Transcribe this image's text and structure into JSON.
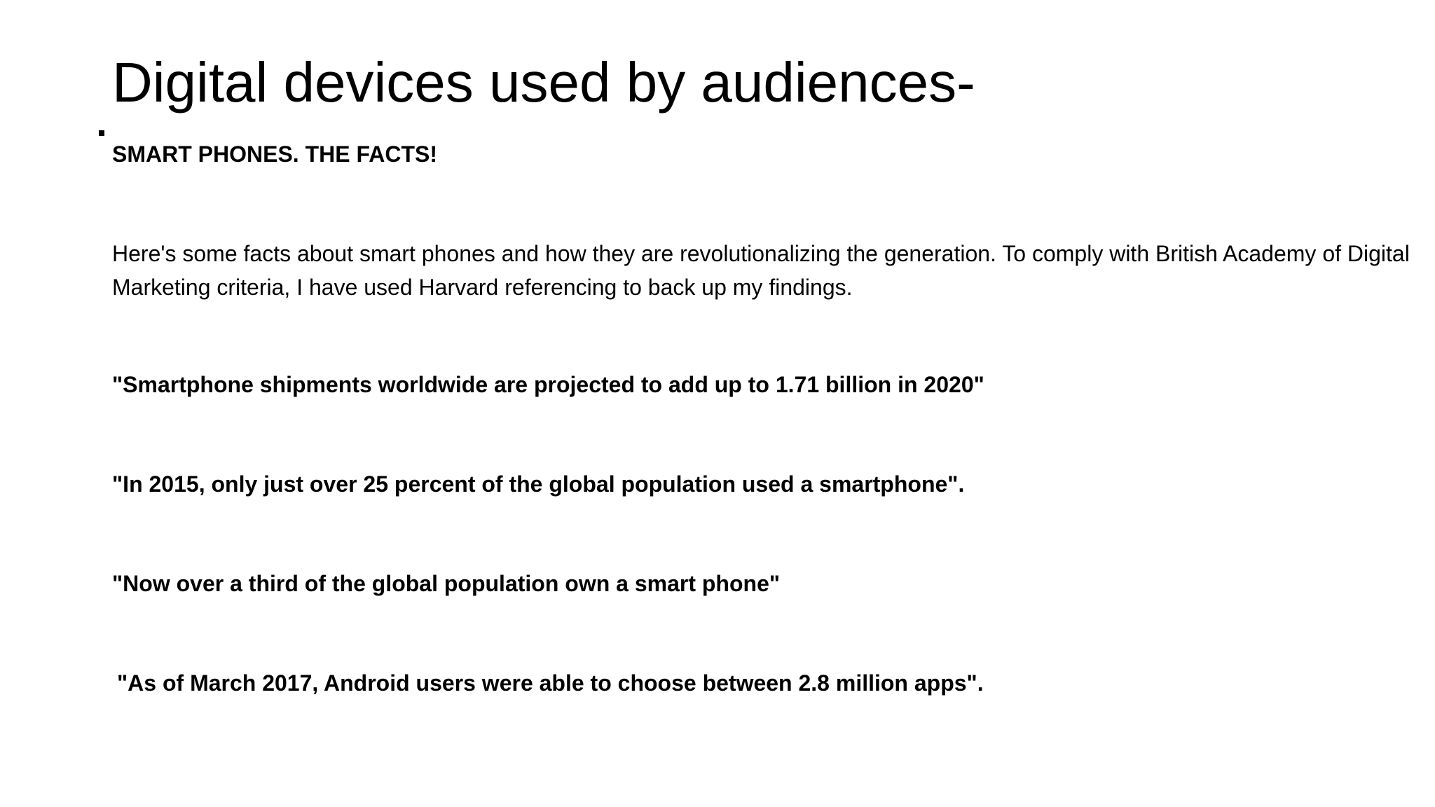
{
  "slide": {
    "title": "Digital devices used by audiences-",
    "subheading": "SMART PHONES. THE FACTS!",
    "intro": "Here's some facts about smart phones and how they are revolutionalizing the generation. To comply with British Academy of Digital Marketing criteria, I have used Harvard referencing to back up my findings.",
    "facts": [
      "\"Smartphone shipments worldwide are projected to add up to 1.71 billion in 2020\"",
      "\"In 2015, only just over 25 percent of the global population used a smartphone\".",
      "\"Now over a third of the global population own a smart phone\"",
      "\"As of March 2017, Android users were able to choose between 2.8 million apps\"."
    ]
  }
}
